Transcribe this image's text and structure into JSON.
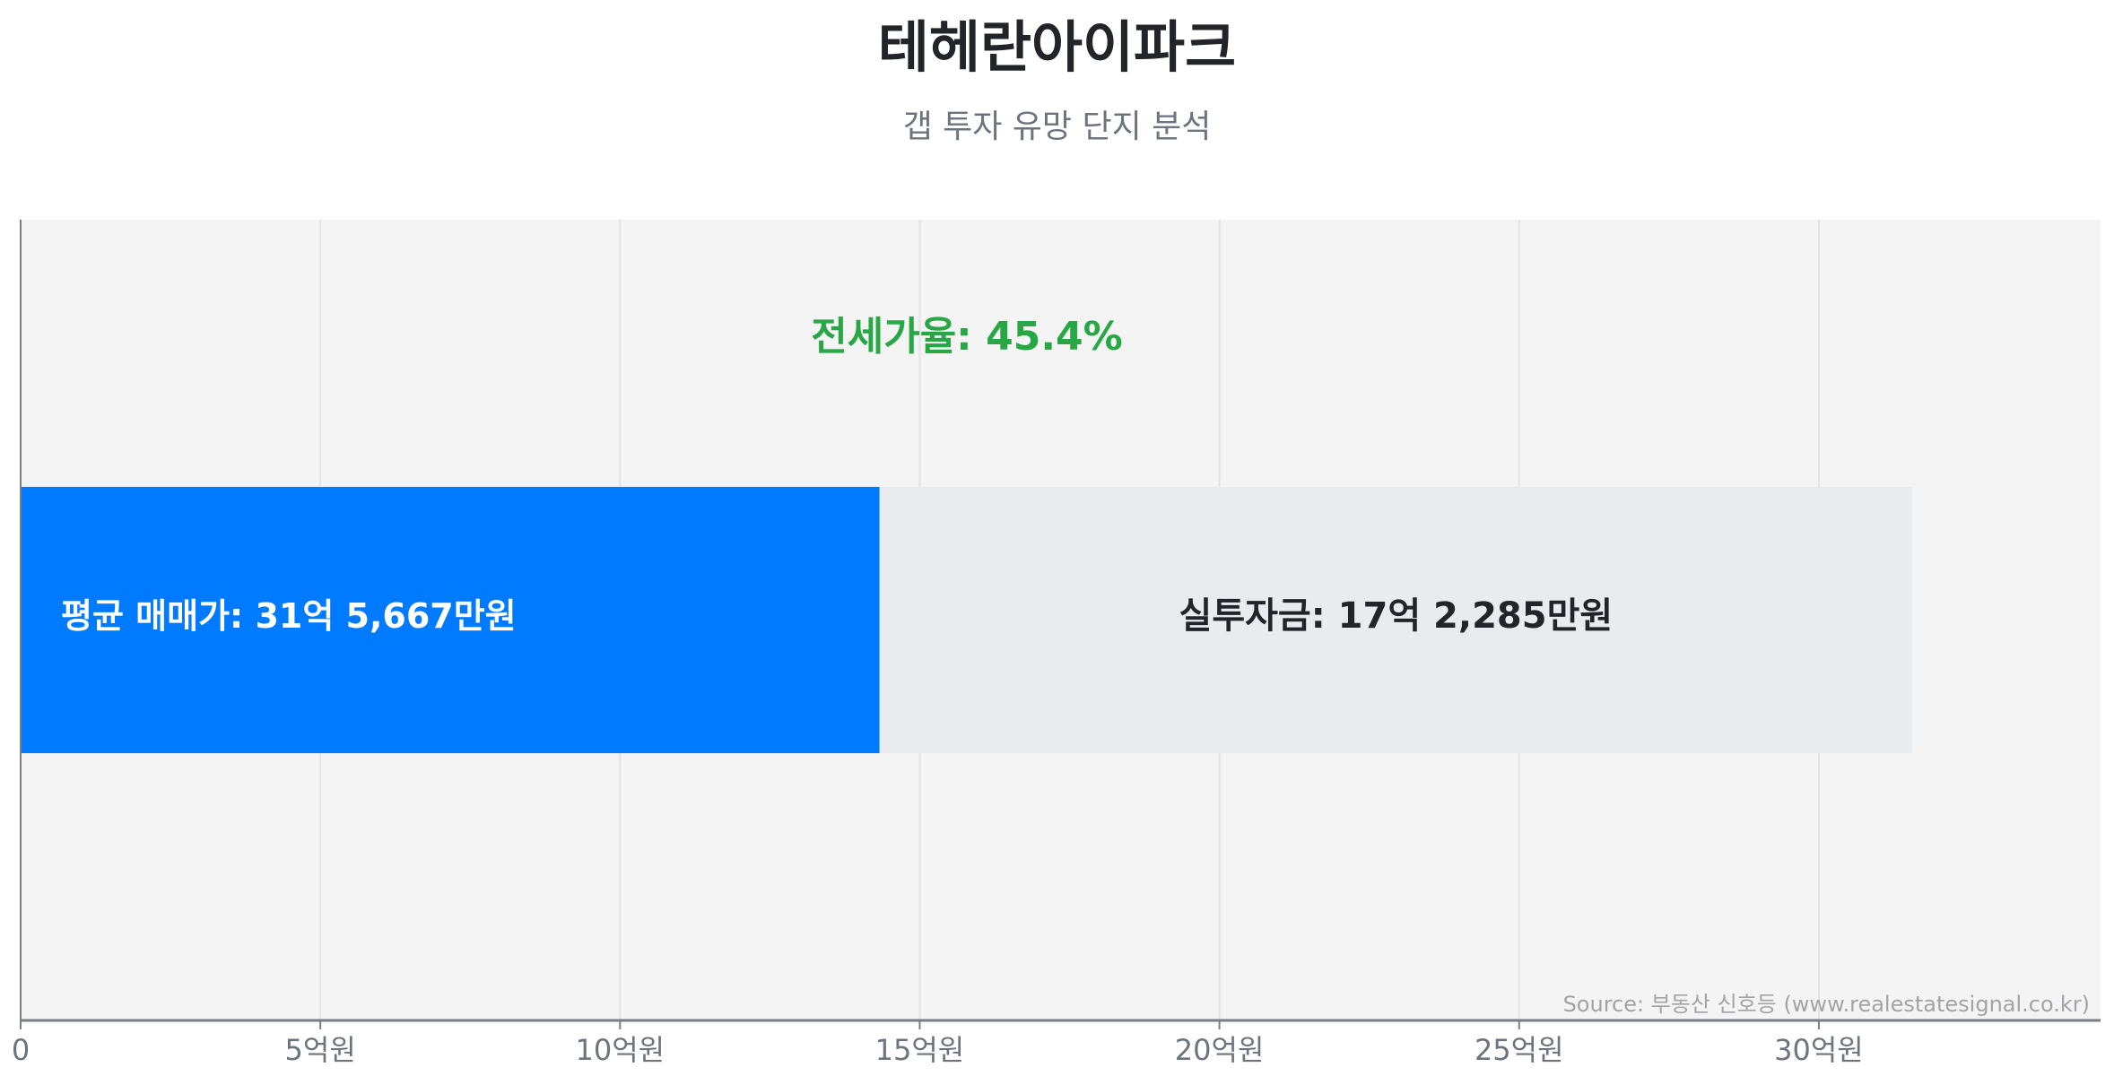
{
  "title": "테헤란아이파크",
  "subtitle": "갭 투자 유망 단지 분석",
  "chart_data": {
    "type": "bar",
    "orientation": "horizontal",
    "stacked": true,
    "xlim": [
      0,
      34.7
    ],
    "x_unit": "억원",
    "x_ticks": [
      0,
      5,
      10,
      15,
      20,
      25,
      30
    ],
    "x_tick_labels": [
      "0",
      "5억원",
      "10억원",
      "15억원",
      "20억원",
      "25억원",
      "30억원"
    ],
    "grid": true,
    "series": [
      {
        "label": "평균 매매가: 31억 5,667만원",
        "value": 14.33,
        "total": 31.5667,
        "color": "#007bff",
        "label_color": "#ffffff"
      },
      {
        "label": "실투자금: 17억 2,285만원",
        "value": 17.2285,
        "color": "#e9ecef",
        "label_color": "#212529"
      }
    ],
    "annotation": "전세가율: 45.4%",
    "annotation_color": "#28a745",
    "source": "Source: 부동산 신호등 (www.realestatesignal.co.kr)",
    "plot_background": "#f4f4f4"
  }
}
